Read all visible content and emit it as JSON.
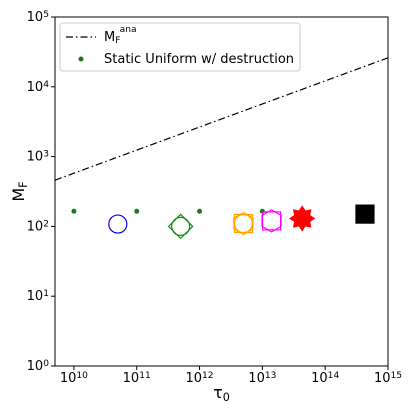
{
  "chart_data": {
    "type": "scatter",
    "log_x": true,
    "log_y": true,
    "x_label": "τ",
    "x_label_sub": "0",
    "y_label": "M",
    "y_label_sub": "F",
    "xlim": [
      5000000000.0,
      1000000000000000.0
    ],
    "ylim": [
      1,
      100000
    ],
    "xticks": [
      {
        "value": 10000000000.0,
        "label": "10",
        "sup": "10"
      },
      {
        "value": 100000000000.0,
        "label": "10",
        "sup": "11"
      },
      {
        "value": 1000000000000.0,
        "label": "10",
        "sup": "12"
      },
      {
        "value": 10000000000000.0,
        "label": "10",
        "sup": "13"
      },
      {
        "value": 100000000000000.0,
        "label": "10",
        "sup": "14"
      },
      {
        "value": 1000000000000000.0,
        "label": "10",
        "sup": "15"
      }
    ],
    "yticks": [
      {
        "value": 1,
        "label": "10",
        "sup": "0"
      },
      {
        "value": 10,
        "label": "10",
        "sup": "1"
      },
      {
        "value": 100,
        "label": "10",
        "sup": "2"
      },
      {
        "value": 1000,
        "label": "10",
        "sup": "3"
      },
      {
        "value": 10000,
        "label": "10",
        "sup": "4"
      },
      {
        "value": 100000,
        "label": "10",
        "sup": "5"
      }
    ],
    "legend_position": "upper left",
    "series": [
      {
        "name": "M",
        "name_sub": "F",
        "name_sup": "ana",
        "style": "dashdot",
        "color": "#000000",
        "x": [
          5000000000.0,
          1000000000000000.0
        ],
        "values": [
          460,
          26000
        ]
      },
      {
        "name": "Static Uniform w/ destruction",
        "style": "dot",
        "color": "#1a7a1a",
        "x": [
          10000000000.0,
          100000000000.0,
          1000000000000.0,
          10000000000000.0
        ],
        "values": [
          165,
          165,
          165,
          165
        ]
      }
    ],
    "markers": [
      {
        "x": 50000000000.0,
        "y": 108,
        "color": "#0000ff",
        "filled": false,
        "shapes": [
          "circle"
        ]
      },
      {
        "x": 500000000000.0,
        "y": 100,
        "color": "#1a8a1a",
        "filled": false,
        "shapes": [
          "circle",
          "diamond"
        ]
      },
      {
        "x": 5000000000000.0,
        "y": 110,
        "color": "#ffa500",
        "filled": false,
        "shapes": [
          "circle",
          "square",
          "hexagon"
        ]
      },
      {
        "x": 14000000000000.0,
        "y": 120,
        "color": "#ff00ff",
        "filled": false,
        "shapes": [
          "square",
          "hexagon"
        ]
      },
      {
        "x": 43000000000000.0,
        "y": 130,
        "color": "#ff0000",
        "filled": true,
        "shapes": [
          "star"
        ]
      },
      {
        "x": 430000000000000.0,
        "y": 150,
        "color": "#000000",
        "filled": true,
        "shapes": [
          "square"
        ]
      }
    ]
  }
}
